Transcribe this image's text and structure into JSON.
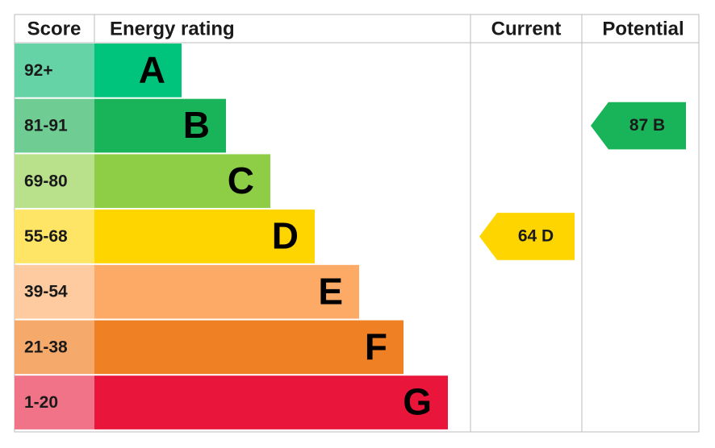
{
  "header": {
    "score": "Score",
    "energy_rating": "Energy rating",
    "current": "Current",
    "potential": "Potential"
  },
  "bands": [
    {
      "score": "92+",
      "letter": "A",
      "color": "#00c47c",
      "score_color": "#66d3a6"
    },
    {
      "score": "81-91",
      "letter": "B",
      "color": "#19b459",
      "score_color": "#6fcd93"
    },
    {
      "score": "69-80",
      "letter": "C",
      "color": "#8dce46",
      "score_color": "#b9e08b"
    },
    {
      "score": "55-68",
      "letter": "D",
      "color": "#ffd500",
      "score_color": "#ffe566"
    },
    {
      "score": "39-54",
      "letter": "E",
      "color": "#fcaa65",
      "score_color": "#fdcb9f"
    },
    {
      "score": "21-38",
      "letter": "F",
      "color": "#ef8023",
      "score_color": "#f5a96a"
    },
    {
      "score": "1-20",
      "letter": "G",
      "color": "#e9153b",
      "score_color": "#f07388"
    }
  ],
  "current": {
    "score": 64,
    "rating": "D"
  },
  "potential": {
    "score": 87,
    "rating": "B"
  }
}
